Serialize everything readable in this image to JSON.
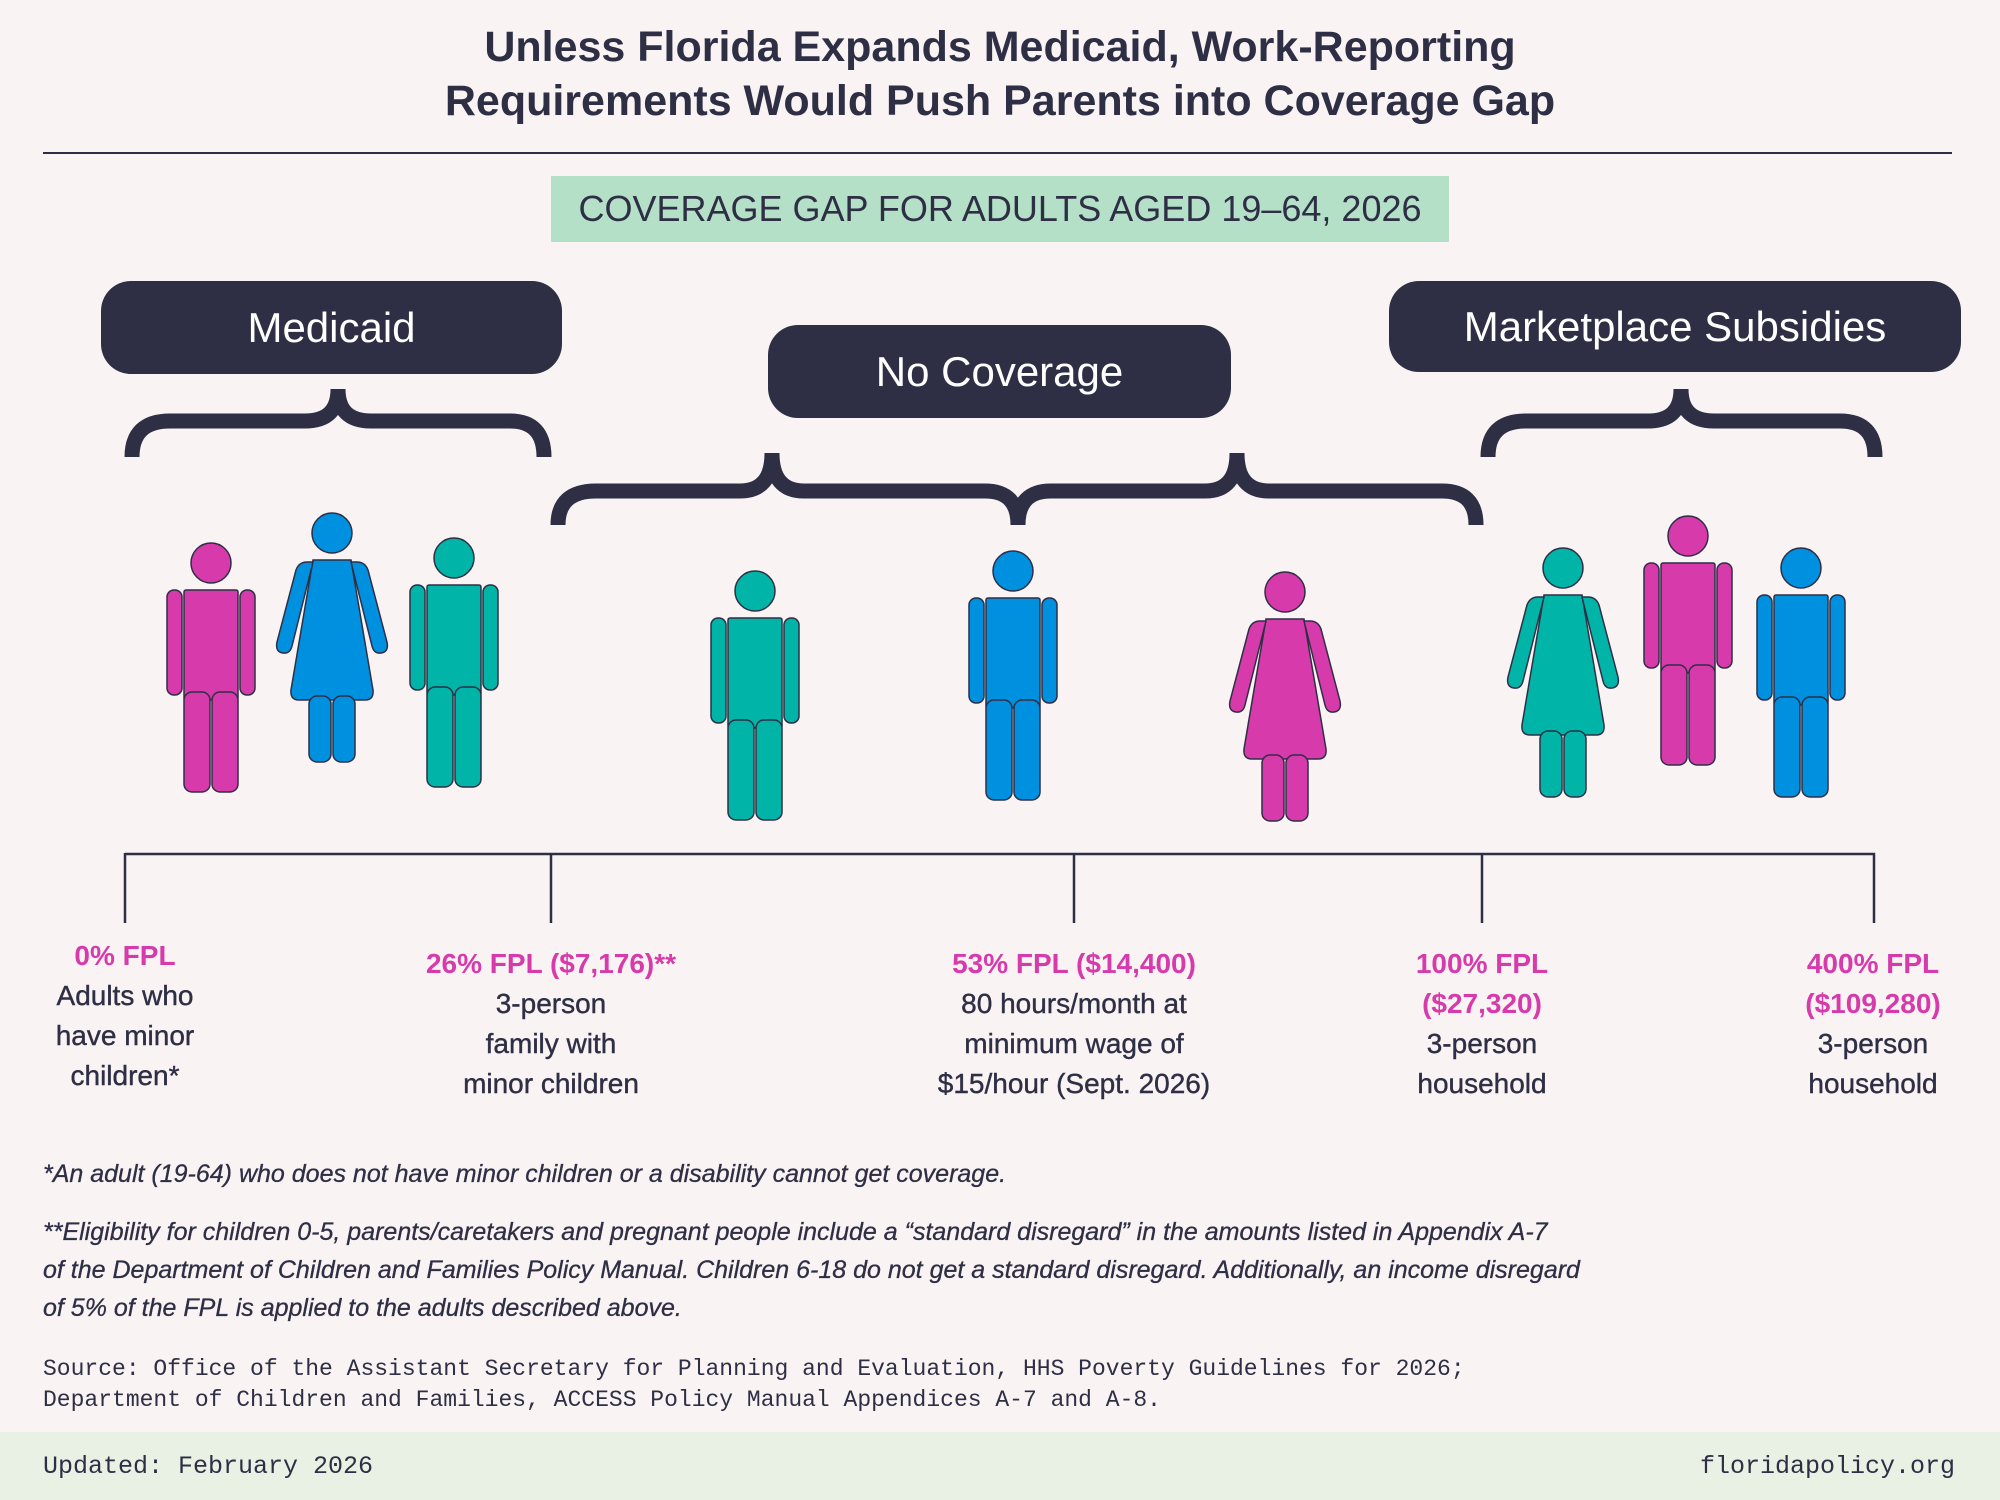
{
  "title": {
    "line1": "Unless Florida Expands Medicaid, Work-Reporting",
    "line2": "Requirements Would Push Parents into Coverage Gap"
  },
  "subtitle": "COVERAGE GAP FOR ADULTS AGED 19–64, 2026",
  "categories": {
    "medicaid": "Medicaid",
    "no_coverage": "No Coverage",
    "marketplace": "Marketplace Subsidies"
  },
  "colors": {
    "pink": "#d63aab",
    "blue": "#0090e0",
    "teal": "#00b5a8",
    "dark": "#2e2f45"
  },
  "figures": [
    {
      "type": "man",
      "color": "pink"
    },
    {
      "type": "woman",
      "color": "blue"
    },
    {
      "type": "man",
      "color": "teal"
    },
    {
      "type": "man",
      "color": "teal"
    },
    {
      "type": "man",
      "color": "blue"
    },
    {
      "type": "woman",
      "color": "pink"
    },
    {
      "type": "woman",
      "color": "teal"
    },
    {
      "type": "man",
      "color": "pink"
    },
    {
      "type": "man",
      "color": "blue"
    }
  ],
  "thresholds": [
    {
      "pct": "0% FPL",
      "desc": [
        "Adults who",
        "have minor",
        "children*"
      ]
    },
    {
      "pct": "26% FPL ($7,176)**",
      "desc": [
        "3-person",
        "family with",
        "minor children"
      ]
    },
    {
      "pct": "53% FPL ($14,400)",
      "desc": [
        "80 hours/month at",
        "minimum wage of",
        "$15/hour (Sept. 2026)"
      ]
    },
    {
      "pct": "100% FPL",
      "pct2": "($27,320)",
      "desc": [
        "3-person",
        "household"
      ]
    },
    {
      "pct": "400% FPL",
      "pct2": "($109,280)",
      "desc": [
        "3-person",
        "household"
      ]
    }
  ],
  "notes": {
    "note1": "*An adult (19-64) who does not have minor children or a disability cannot get coverage.",
    "note2": [
      "**Eligibility for children 0-5, parents/caretakers and pregnant people include a “standard disregard” in the amounts listed in Appendix A-7",
      "of the Department of Children and Families Policy Manual. Children 6-18 do not get a standard disregard. Additionally, an income disregard",
      "of 5% of the FPL is applied to the adults described above."
    ]
  },
  "source": [
    "Source: Office of the Assistant Secretary for Planning and Evaluation, HHS Poverty Guidelines for 2026;",
    "Department of Children and Families, ACCESS Policy Manual Appendices A-7 and A-8."
  ],
  "footer": {
    "updated": "Updated: February 2026",
    "site": "floridapolicy.org"
  }
}
